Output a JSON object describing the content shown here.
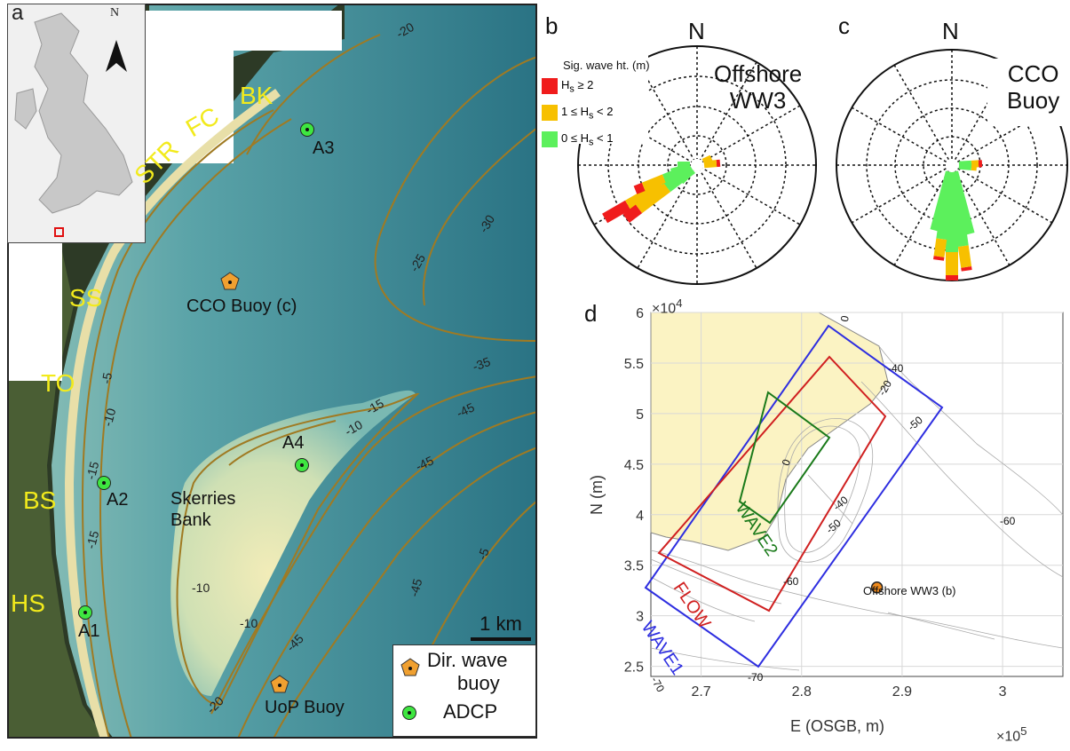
{
  "panel_a": {
    "letter": "a",
    "compass_letter": "N",
    "coast_labels": [
      "BK",
      "FC",
      "STR",
      "SS",
      "TO",
      "BS",
      "HS"
    ],
    "adcp_labels": [
      "A1",
      "A2",
      "A3",
      "A4"
    ],
    "buoy_labels": [
      "CCO Buoy (c)",
      "UoP Buoy"
    ],
    "feature_label_line1": "Skerries",
    "feature_label_line2": "Bank",
    "contour_labels": [
      "-20",
      "-30",
      "-25",
      "-35",
      "-45",
      "-45",
      "-45",
      "-10",
      "-15",
      "-10",
      "-15",
      "-10",
      "-20",
      "-45",
      "-5",
      "-10",
      "-15",
      "-5"
    ],
    "scale_bar_label": "1 km",
    "legend": {
      "buoy_line1": "Dir. wave",
      "buoy_line2": "buoy",
      "adcp": "ADCP"
    },
    "colors": {
      "coast_label": "#f2ea1c",
      "adcp_marker": "#3ee640",
      "buoy_marker": "#f0a030",
      "contour": "#a07a22",
      "sea": "#2e7f8c"
    }
  },
  "panel_b": {
    "letter": "b",
    "north": "N",
    "title_line1": "Offshore",
    "title_line2": "WW3",
    "legend_title": "Sig. wave ht. (m)",
    "legend": [
      {
        "pre": "H",
        "sub": "s",
        "post": " ≥ 2",
        "color": "#f01c1c"
      },
      {
        "pre": "1 ≤ H",
        "sub": "s",
        "post": " < 2",
        "color": "#f7c000"
      },
      {
        "pre": "0 ≤ H",
        "sub": "s",
        "post": " < 1",
        "color": "#5cf05c"
      }
    ]
  },
  "panel_c": {
    "letter": "c",
    "north": "N",
    "title_line1": "CCO",
    "title_line2": "Buoy"
  },
  "panel_d": {
    "letter": "d",
    "x_label": "E (OSGB, m)",
    "y_label": "N (m)",
    "x_ticks": [
      "2.7",
      "2.8",
      "2.9",
      "3"
    ],
    "y_ticks": [
      "2.5",
      "3",
      "3.5",
      "4",
      "4.5",
      "5",
      "5.5",
      "6"
    ],
    "x_exp_base": "×10",
    "x_exp_power": "5",
    "y_exp_base": "×10",
    "y_exp_power": "4",
    "domain_labels": [
      {
        "text": "WAVE1",
        "color": "#2e2ee0"
      },
      {
        "text": "FLOW",
        "color": "#d02020"
      },
      {
        "text": "WAVE2",
        "color": "#1a7a1a"
      }
    ],
    "ww3_point_label": "Offshore WW3 (b)",
    "contour_labels": [
      "0",
      "-40",
      "-20",
      "-50",
      "0",
      "-40",
      "-50",
      "-60",
      "-60",
      "-70",
      "-70"
    ],
    "colors": {
      "land": "#fbf3c3",
      "grid": "#d8d8d8"
    }
  },
  "chart_data": {
    "type": "scatter",
    "title": "",
    "xlabel": "E (OSGB, m)",
    "ylabel": "N (m)",
    "xlim": [
      265000,
      306000
    ],
    "ylim": [
      24000,
      60000
    ],
    "series": [
      {
        "name": "Offshore WW3 (b)",
        "x": [
          287500
        ],
        "y": [
          32800
        ]
      }
    ]
  }
}
